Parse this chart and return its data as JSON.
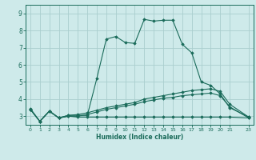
{
  "xlabel": "Humidex (Indice chaleur)",
  "background_color": "#ceeaea",
  "grid_color": "#aacece",
  "line_color": "#1a6b5a",
  "xlim": [
    -0.5,
    23.5
  ],
  "ylim": [
    2.5,
    9.5
  ],
  "xticks": [
    0,
    1,
    2,
    3,
    4,
    5,
    6,
    7,
    8,
    9,
    10,
    11,
    12,
    13,
    14,
    15,
    16,
    17,
    18,
    19,
    20,
    21,
    23
  ],
  "yticks": [
    3,
    4,
    5,
    6,
    7,
    8,
    9
  ],
  "series": [
    {
      "x": [
        0,
        1,
        2,
        3,
        4,
        5,
        6,
        7,
        8,
        9,
        10,
        11,
        12,
        13,
        14,
        15,
        16,
        17,
        18,
        19,
        20,
        21,
        23
      ],
      "y": [
        3.45,
        2.7,
        3.3,
        2.9,
        3.05,
        3.05,
        3.05,
        5.2,
        7.5,
        7.65,
        7.3,
        7.25,
        8.65,
        8.55,
        8.6,
        8.6,
        7.2,
        6.7,
        5.0,
        4.8,
        4.3,
        3.5,
        2.95
      ]
    },
    {
      "x": [
        0,
        1,
        2,
        3,
        4,
        5,
        6,
        7,
        8,
        9,
        10,
        11,
        12,
        13,
        14,
        15,
        16,
        17,
        18,
        19,
        20,
        21,
        23
      ],
      "y": [
        3.4,
        2.7,
        3.3,
        2.9,
        3.05,
        3.1,
        3.2,
        3.35,
        3.5,
        3.6,
        3.7,
        3.8,
        4.0,
        4.1,
        4.2,
        4.3,
        4.4,
        4.5,
        4.55,
        4.6,
        4.45,
        3.7,
        2.95
      ]
    },
    {
      "x": [
        0,
        1,
        2,
        3,
        4,
        5,
        6,
        7,
        8,
        9,
        10,
        11,
        12,
        13,
        14,
        15,
        16,
        17,
        18,
        19,
        20,
        21,
        23
      ],
      "y": [
        3.4,
        2.7,
        3.3,
        2.9,
        3.0,
        2.95,
        2.95,
        2.95,
        2.95,
        2.95,
        2.95,
        2.95,
        2.95,
        2.95,
        2.95,
        2.95,
        2.95,
        2.95,
        2.95,
        2.95,
        2.95,
        2.95,
        2.9
      ]
    },
    {
      "x": [
        0,
        1,
        2,
        3,
        4,
        5,
        6,
        7,
        8,
        9,
        10,
        11,
        12,
        13,
        14,
        15,
        16,
        17,
        18,
        19,
        20,
        21,
        23
      ],
      "y": [
        3.4,
        2.7,
        3.3,
        2.9,
        3.0,
        3.0,
        3.1,
        3.25,
        3.4,
        3.5,
        3.6,
        3.7,
        3.85,
        3.95,
        4.05,
        4.1,
        4.2,
        4.25,
        4.3,
        4.35,
        4.2,
        3.55,
        2.9
      ]
    }
  ]
}
